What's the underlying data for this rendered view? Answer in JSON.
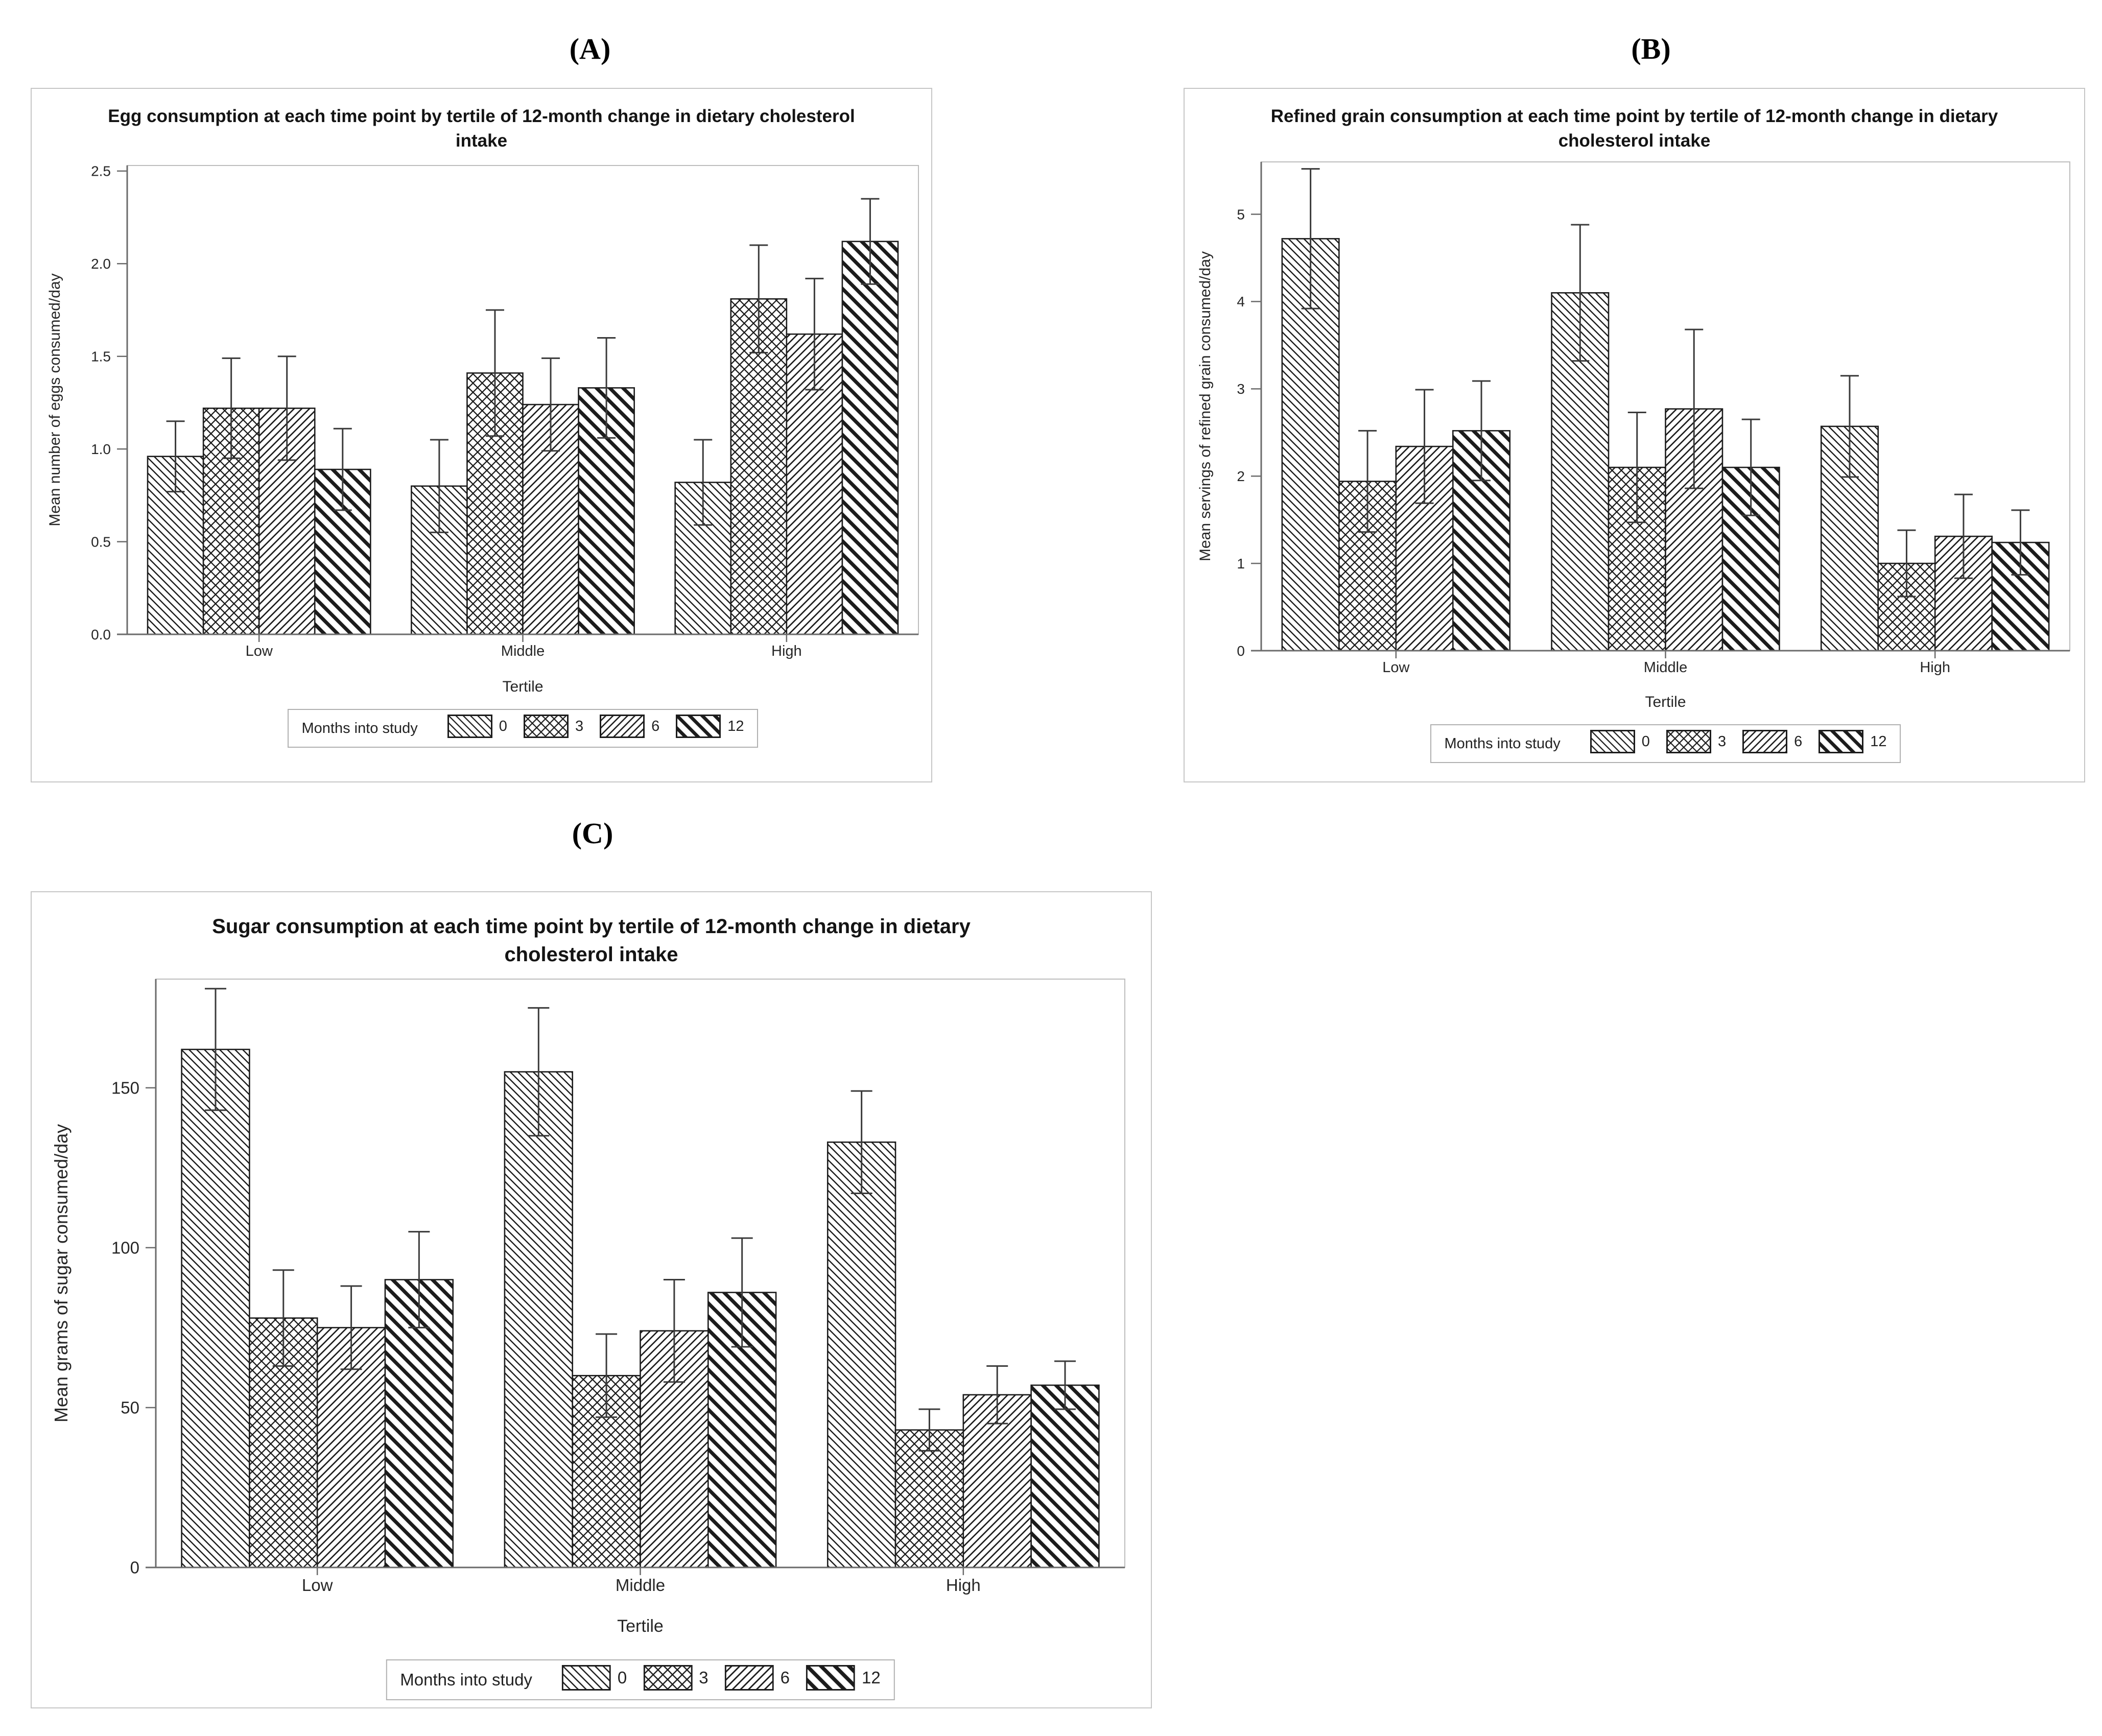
{
  "panel_letters": [
    "(A)",
    "(B)",
    "(C)"
  ],
  "chart_data": [
    {
      "type": "bar",
      "panel": "A",
      "title": "Egg consumption at each time point by tertile of 12-month change in dietary cholesterol intake",
      "xlabel": "Tertile",
      "ylabel": "Mean number of eggs consumed/day",
      "legend_title": "Months into study",
      "legend_position": "bottom",
      "grid": false,
      "categories": [
        "Low",
        "Middle",
        "High"
      ],
      "ylim": [
        0,
        2.53
      ],
      "ytick_values": [
        0.0,
        0.5,
        1.0,
        1.5,
        2.0,
        2.5
      ],
      "ytick_labels": [
        "0.0",
        "0.5",
        "1.0",
        "1.5",
        "2.0",
        "2.5"
      ],
      "series": [
        {
          "name": "0",
          "pattern": "diag-down-thin",
          "values": [
            0.96,
            0.8,
            0.82
          ],
          "errors": [
            0.19,
            0.25,
            0.23
          ]
        },
        {
          "name": "3",
          "pattern": "crosshatch",
          "values": [
            1.22,
            1.41,
            1.81
          ],
          "errors": [
            0.27,
            0.34,
            0.29
          ]
        },
        {
          "name": "6",
          "pattern": "diag-up-thin",
          "values": [
            1.22,
            1.24,
            1.62
          ],
          "errors": [
            0.28,
            0.25,
            0.3
          ]
        },
        {
          "name": "12",
          "pattern": "diag-down-thick",
          "values": [
            0.89,
            1.33,
            2.12
          ],
          "errors": [
            0.22,
            0.27,
            0.23
          ]
        }
      ]
    },
    {
      "type": "bar",
      "panel": "B",
      "title": "Refined grain consumption at each time point by tertile of 12-month change in dietary cholesterol intake",
      "xlabel": "Tertile",
      "ylabel": "Mean servings of refined grain consumed/day",
      "legend_title": "Months into study",
      "legend_position": "bottom",
      "grid": false,
      "categories": [
        "Low",
        "Middle",
        "High"
      ],
      "ylim": [
        0,
        5.6
      ],
      "ytick_values": [
        0,
        1,
        2,
        3,
        4,
        5
      ],
      "ytick_labels": [
        "0",
        "1",
        "2",
        "3",
        "4",
        "5"
      ],
      "series": [
        {
          "name": "0",
          "pattern": "diag-down-thin",
          "values": [
            4.72,
            4.1,
            2.57
          ],
          "errors": [
            0.8,
            0.78,
            0.58
          ]
        },
        {
          "name": "3",
          "pattern": "crosshatch",
          "values": [
            1.94,
            2.1,
            1.0
          ],
          "errors": [
            0.58,
            0.63,
            0.38
          ]
        },
        {
          "name": "6",
          "pattern": "diag-up-thin",
          "values": [
            2.34,
            2.77,
            1.31
          ],
          "errors": [
            0.65,
            0.91,
            0.48
          ]
        },
        {
          "name": "12",
          "pattern": "diag-down-thick",
          "values": [
            2.52,
            2.1,
            1.24
          ],
          "errors": [
            0.57,
            0.55,
            0.37
          ]
        }
      ]
    },
    {
      "type": "bar",
      "panel": "C",
      "title": "Sugar consumption at each time point by tertile of 12-month change in dietary cholesterol intake",
      "xlabel": "Tertile",
      "ylabel": "Mean grams of sugar consumed/day",
      "legend_title": "Months into study",
      "legend_position": "bottom",
      "grid": false,
      "categories": [
        "Low",
        "Middle",
        "High"
      ],
      "ylim": [
        0,
        184
      ],
      "ytick_values": [
        0,
        50,
        100,
        150
      ],
      "ytick_labels": [
        "0",
        "50",
        "100",
        "150"
      ],
      "series": [
        {
          "name": "0",
          "pattern": "diag-down-thin",
          "values": [
            162,
            155,
            133
          ],
          "errors": [
            19,
            20,
            16
          ]
        },
        {
          "name": "3",
          "pattern": "crosshatch",
          "values": [
            78,
            60,
            43
          ],
          "errors": [
            15,
            13,
            6.5
          ]
        },
        {
          "name": "6",
          "pattern": "diag-up-thin",
          "values": [
            75,
            74,
            54
          ],
          "errors": [
            13,
            16,
            9
          ]
        },
        {
          "name": "12",
          "pattern": "diag-down-thick",
          "values": [
            90,
            86,
            57
          ],
          "errors": [
            15,
            17,
            7.5
          ]
        }
      ]
    }
  ]
}
